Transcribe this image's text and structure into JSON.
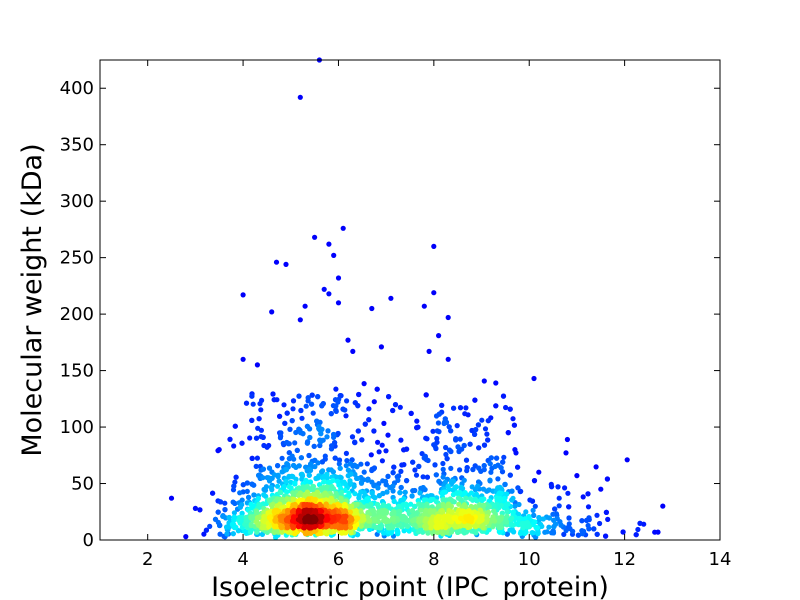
{
  "chart_data": {
    "type": "scatter",
    "title": "",
    "xlabel": "Isoelectric point (IPC_protein)",
    "ylabel": "Molecular weight (kDa)",
    "xlim": [
      1,
      14
    ],
    "ylim": [
      0,
      425
    ],
    "x_ticks": [
      "2",
      "4",
      "6",
      "8",
      "10",
      "12",
      "14"
    ],
    "y_ticks": [
      "0",
      "50",
      "100",
      "150",
      "200",
      "250",
      "300",
      "350",
      "400"
    ],
    "grid": false,
    "legend": "none",
    "colormap": "jet (point density)",
    "density_peaks": [
      {
        "x": 5.2,
        "y": 20,
        "level": "highest"
      },
      {
        "x": 8.6,
        "y": 17,
        "level": "high"
      }
    ],
    "outliers": [
      {
        "x": 5.6,
        "y": 425
      },
      {
        "x": 5.2,
        "y": 392
      },
      {
        "x": 6.1,
        "y": 276
      },
      {
        "x": 5.5,
        "y": 268
      },
      {
        "x": 5.8,
        "y": 262
      },
      {
        "x": 8.0,
        "y": 260
      },
      {
        "x": 4.7,
        "y": 246
      },
      {
        "x": 4.9,
        "y": 244
      },
      {
        "x": 5.9,
        "y": 252
      },
      {
        "x": 6.0,
        "y": 232
      },
      {
        "x": 5.7,
        "y": 222
      },
      {
        "x": 5.8,
        "y": 218
      },
      {
        "x": 8.0,
        "y": 219
      },
      {
        "x": 4.0,
        "y": 217
      },
      {
        "x": 6.0,
        "y": 210
      },
      {
        "x": 7.1,
        "y": 214
      },
      {
        "x": 6.7,
        "y": 205
      },
      {
        "x": 4.6,
        "y": 202
      },
      {
        "x": 5.3,
        "y": 207
      },
      {
        "x": 8.3,
        "y": 197
      },
      {
        "x": 5.2,
        "y": 195
      },
      {
        "x": 7.8,
        "y": 207
      },
      {
        "x": 6.2,
        "y": 177
      },
      {
        "x": 8.1,
        "y": 181
      },
      {
        "x": 6.3,
        "y": 167
      },
      {
        "x": 6.9,
        "y": 171
      },
      {
        "x": 7.9,
        "y": 167
      },
      {
        "x": 4.0,
        "y": 160
      },
      {
        "x": 4.3,
        "y": 155
      },
      {
        "x": 8.3,
        "y": 160
      },
      {
        "x": 10.1,
        "y": 143
      },
      {
        "x": 9.3,
        "y": 139
      },
      {
        "x": 10.8,
        "y": 89
      },
      {
        "x": 3.5,
        "y": 80
      },
      {
        "x": 2.5,
        "y": 37
      },
      {
        "x": 12.8,
        "y": 30
      },
      {
        "x": 12.4,
        "y": 14
      },
      {
        "x": 12.7,
        "y": 7
      },
      {
        "x": 11.5,
        "y": 45
      },
      {
        "x": 11.0,
        "y": 57
      },
      {
        "x": 10.2,
        "y": 60
      },
      {
        "x": 9.7,
        "y": 80
      },
      {
        "x": 3.0,
        "y": 28
      },
      {
        "x": 3.3,
        "y": 12
      },
      {
        "x": 2.8,
        "y": 3
      }
    ]
  }
}
